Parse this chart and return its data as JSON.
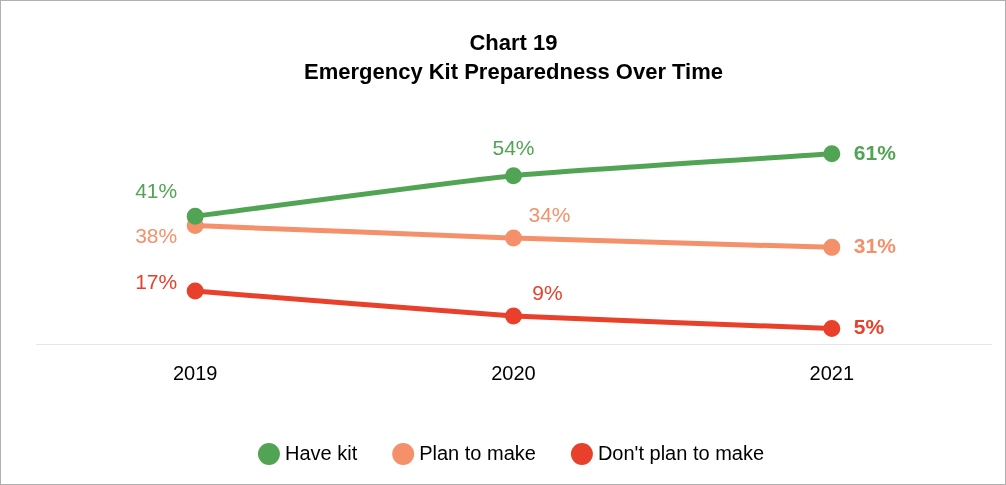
{
  "chart_data": {
    "type": "line",
    "title": "Chart 19",
    "subtitle": "Emergency Kit Preparedness Over Time",
    "categories": [
      "2019",
      "2020",
      "2021"
    ],
    "series": [
      {
        "name": "Have kit",
        "color": "#52a455",
        "values": [
          41,
          54,
          61
        ],
        "value_labels": [
          "41%",
          "54%",
          "61%"
        ]
      },
      {
        "name": "Plan to make",
        "color": "#f4906a",
        "values": [
          38,
          34,
          31
        ],
        "value_labels": [
          "38%",
          "34%",
          "31%"
        ]
      },
      {
        "name": "Don't plan to make",
        "color": "#e8402a",
        "values": [
          17,
          9,
          5
        ],
        "value_labels": [
          "17%",
          "9%",
          "5%"
        ]
      }
    ],
    "marker": "circle",
    "line_style": "solid",
    "grid": false,
    "legend": "bottom"
  }
}
